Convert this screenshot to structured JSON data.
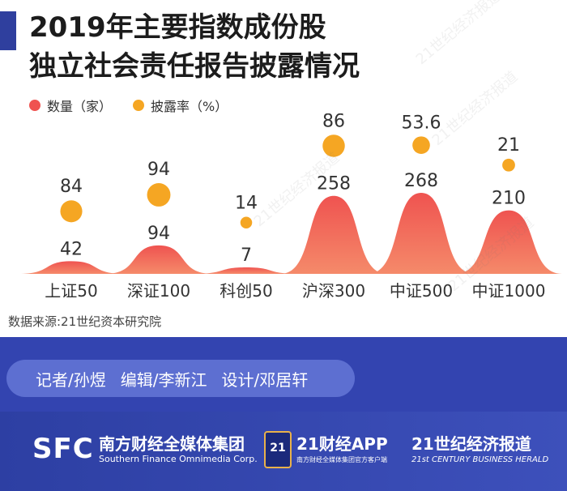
{
  "header": {
    "title_line1": "2019年主要指数成份股",
    "title_line2": "独立社会责任报告披露情况"
  },
  "legend": {
    "count_label": "数量（家）",
    "rate_label": "披露率（%）"
  },
  "colors": {
    "accent": "#2f3f9e",
    "count": "#ef5350",
    "rate": "#f5a623"
  },
  "chart_data": {
    "type": "area",
    "categories": [
      "上证50",
      "深证100",
      "科创50",
      "沪深300",
      "中证500",
      "中证1000"
    ],
    "series": [
      {
        "name": "数量（家）",
        "values": [
          42,
          94,
          7,
          258,
          268,
          210
        ],
        "labels": [
          "42",
          "94",
          "7",
          "258",
          "268",
          "210"
        ]
      },
      {
        "name": "披露率（%）",
        "values": [
          84,
          94,
          14,
          86,
          53.6,
          21
        ],
        "labels": [
          "84",
          "94",
          "14",
          "86",
          "53.6",
          "21"
        ]
      }
    ],
    "ylim": [
      0,
      300
    ],
    "grid": false,
    "legend": "top-left"
  },
  "source": "数据来源:21世纪资本研究院",
  "credits": {
    "reporter": "记者/孙煜",
    "editor": "编辑/李新江",
    "designer": "设计/邓居轩"
  },
  "brands": {
    "sfc_logo": "SFC",
    "sfc_cn": "南方财经全媒体集团",
    "sfc_en": "Southern Finance Omnimedia Corp.",
    "app_badge": "21",
    "app_name": "21财经APP",
    "app_sub": "南方财经全媒体集团官方客户端",
    "paper_cn": "21世纪经济报道",
    "paper_en": "21st CENTURY BUSINESS HERALD"
  },
  "watermark": "21世纪经济报道"
}
